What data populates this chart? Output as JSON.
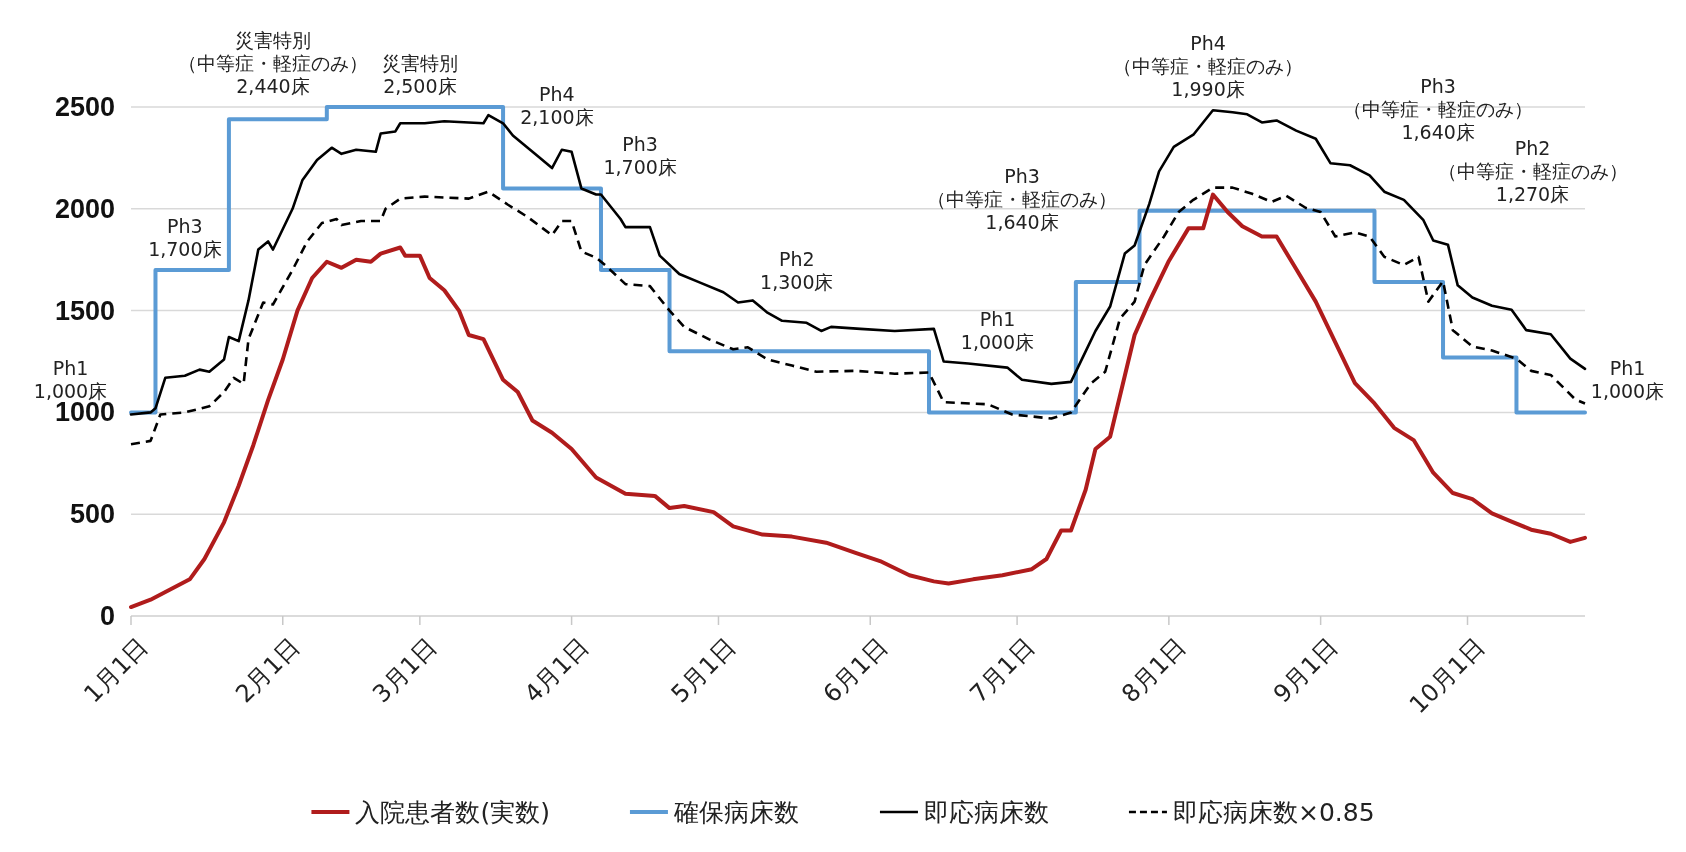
{
  "chart_data": {
    "type": "line",
    "xlim": [
      "--01-01",
      "--10-25"
    ],
    "xticks": [
      {
        "value": "--01-01",
        "label": "1月1日"
      },
      {
        "value": "--02-01",
        "label": "2月1日"
      },
      {
        "value": "--03-01",
        "label": "3月1日"
      },
      {
        "value": "--04-01",
        "label": "4月1日"
      },
      {
        "value": "--05-01",
        "label": "5月1日"
      },
      {
        "value": "--06-01",
        "label": "6月1日"
      },
      {
        "value": "--07-01",
        "label": "7月1日"
      },
      {
        "value": "--08-01",
        "label": "8月1日"
      },
      {
        "value": "--09-01",
        "label": "9月1日"
      },
      {
        "value": "--10-01",
        "label": "10月1日"
      }
    ],
    "ylim": [
      0,
      2500
    ],
    "yticks": [
      0,
      500,
      1000,
      1500,
      2000,
      2500
    ],
    "grid": "y",
    "legend": "bottom",
    "series": [
      {
        "name": "入院患者数(実数)",
        "color": "#b01c1c",
        "x": [
          "--01-01",
          "--01-05",
          "--01-09",
          "--01-13",
          "--01-16",
          "--01-20",
          "--01-23",
          "--01-26",
          "--01-29",
          "--02-01",
          "--02-04",
          "--02-07",
          "--02-10",
          "--02-13",
          "--02-16",
          "--02-19",
          "--02-21",
          "--02-25",
          "--02-26",
          "--03-01",
          "--03-03",
          "--03-06",
          "--03-09",
          "--03-11",
          "--03-14",
          "--03-18",
          "--03-21",
          "--03-24",
          "--03-28",
          "--04-01",
          "--04-06",
          "--04-12",
          "--04-18",
          "--04-21",
          "--04-24",
          "--04-30",
          "--05-04",
          "--05-10",
          "--05-16",
          "--05-23",
          "--05-29",
          "--06-03",
          "--06-09",
          "--06-14",
          "--06-17",
          "--06-22",
          "--06-28",
          "--07-04",
          "--07-07",
          "--07-10",
          "--07-12",
          "--07-15",
          "--07-17",
          "--07-20",
          "--07-23",
          "--07-25",
          "--07-28",
          "--08-01",
          "--08-05",
          "--08-08",
          "--08-10",
          "--08-13",
          "--08-16",
          "--08-20",
          "--08-23",
          "--08-27",
          "--08-31",
          "--09-04",
          "--09-08",
          "--09-12",
          "--09-16",
          "--09-20",
          "--09-24",
          "--09-28",
          "--10-02",
          "--10-06",
          "--10-10",
          "--10-14",
          "--10-18",
          "--10-22",
          "--10-25"
        ],
        "values": [
          44,
          80,
          130,
          180,
          280,
          460,
          640,
          840,
          1060,
          1260,
          1500,
          1660,
          1740,
          1710,
          1750,
          1740,
          1780,
          1810,
          1770,
          1770,
          1660,
          1600,
          1500,
          1380,
          1360,
          1160,
          1100,
          960,
          900,
          820,
          680,
          600,
          590,
          530,
          540,
          510,
          440,
          400,
          390,
          360,
          310,
          270,
          200,
          170,
          160,
          180,
          200,
          230,
          280,
          420,
          420,
          620,
          820,
          880,
          1180,
          1380,
          1544,
          1744,
          1904,
          1904,
          2070,
          1984,
          1914,
          1864,
          1864,
          1704,
          1544,
          1344,
          1144,
          1044,
          924,
          864,
          704,
          604,
          574,
          504,
          464,
          424,
          404,
          364,
          384
        ]
      },
      {
        "name": "確保病床数",
        "color": "#5b9bd5",
        "type": "step",
        "x": [
          "--01-01",
          "--01-06",
          "--01-21",
          "--02-10",
          "--03-18",
          "--04-07",
          "--04-21",
          "--06-13",
          "--07-13",
          "--07-26",
          "--09-12",
          "--09-26",
          "--10-11",
          "--10-25"
        ],
        "values": [
          1000,
          1700,
          2440,
          2500,
          2100,
          1700,
          1300,
          1000,
          1640,
          1990,
          1640,
          1270,
          1000,
          1000
        ]
      },
      {
        "name": "即応病床数",
        "color": "#000000",
        "x": [
          "--01-01",
          "--01-05",
          "--01-06",
          "--01-08",
          "--01-12",
          "--01-15",
          "--01-17",
          "--01-20",
          "--01-21",
          "--01-23",
          "--01-25",
          "--01-27",
          "--01-29",
          "--01-30",
          "--02-03",
          "--02-05",
          "--02-08",
          "--02-11",
          "--02-13",
          "--02-16",
          "--02-20",
          "--02-21",
          "--02-24",
          "--02-25",
          "--03-02",
          "--03-06",
          "--03-14",
          "--03-15",
          "--03-18",
          "--03-20",
          "--03-25",
          "--03-28",
          "--03-30",
          "--04-01",
          "--04-03",
          "--04-06",
          "--04-07",
          "--04-11",
          "--04-12",
          "--04-17",
          "--04-19",
          "--04-23",
          "--04-27",
          "--05-02",
          "--05-05",
          "--05-08",
          "--05-11",
          "--05-14",
          "--05-19",
          "--05-22",
          "--05-24",
          "--05-30",
          "--06-06",
          "--06-14",
          "--06-16",
          "--06-21",
          "--06-29",
          "--07-02",
          "--07-08",
          "--07-12",
          "--07-15",
          "--07-17",
          "--07-20",
          "--07-23",
          "--07-25",
          "--07-28",
          "--07-30",
          "--08-02",
          "--08-06",
          "--08-08",
          "--08-10",
          "--08-14",
          "--08-17",
          "--08-20",
          "--08-23",
          "--08-27",
          "--08-31",
          "--09-03",
          "--09-07",
          "--09-11",
          "--09-14",
          "--09-18",
          "--09-22",
          "--09-24",
          "--09-27",
          "--09-29",
          "--10-02",
          "--10-06",
          "--10-10",
          "--10-13",
          "--10-18",
          "--10-22",
          "--10-25"
        ],
        "values": [
          990,
          1000,
          1020,
          1170,
          1180,
          1210,
          1200,
          1260,
          1370,
          1350,
          1550,
          1800,
          1840,
          1800,
          2000,
          2140,
          2240,
          2300,
          2270,
          2290,
          2280,
          2370,
          2380,
          2420,
          2420,
          2430,
          2420,
          2460,
          2420,
          2360,
          2260,
          2200,
          2290,
          2280,
          2100,
          2070,
          2070,
          1950,
          1910,
          1910,
          1770,
          1680,
          1640,
          1590,
          1540,
          1550,
          1490,
          1450,
          1440,
          1400,
          1420,
          1410,
          1400,
          1410,
          1250,
          1240,
          1220,
          1160,
          1140,
          1150,
          1300,
          1400,
          1520,
          1780,
          1820,
          2024,
          2184,
          2304,
          2364,
          2424,
          2484,
          2474,
          2464,
          2424,
          2434,
          2384,
          2344,
          2224,
          2214,
          2164,
          2084,
          2044,
          1944,
          1844,
          1824,
          1624,
          1564,
          1524,
          1504,
          1404,
          1384,
          1264,
          1214
        ]
      },
      {
        "name": "即応病床数×0.85",
        "color": "#000000",
        "line_style": "dashed",
        "x": [
          "--01-01",
          "--01-05",
          "--01-07",
          "--01-12",
          "--01-17",
          "--01-20",
          "--01-22",
          "--01-24",
          "--01-25",
          "--01-28",
          "--01-30",
          "--02-03",
          "--02-06",
          "--02-09",
          "--02-12",
          "--02-13",
          "--02-17",
          "--02-21",
          "--02-22",
          "--02-25",
          "--03-02",
          "--03-11",
          "--03-15",
          "--03-19",
          "--03-23",
          "--03-28",
          "--03-30",
          "--04-01",
          "--04-03",
          "--04-06",
          "--04-08",
          "--04-12",
          "--04-17",
          "--04-21",
          "--04-24",
          "--04-29",
          "--05-04",
          "--05-07",
          "--05-11",
          "--05-16",
          "--05-21",
          "--05-29",
          "--06-06",
          "--06-13",
          "--06-16",
          "--06-25",
          "--06-30",
          "--07-08",
          "--07-12",
          "--07-16",
          "--07-19",
          "--07-22",
          "--07-25",
          "--07-27",
          "--07-31",
          "--08-03",
          "--08-06",
          "--08-10",
          "--08-14",
          "--08-18",
          "--08-22",
          "--08-25",
          "--08-29",
          "--09-01",
          "--09-04",
          "--09-08",
          "--09-11",
          "--09-14",
          "--09-18",
          "--09-21",
          "--09-23",
          "--09-26",
          "--09-28",
          "--10-02",
          "--10-06",
          "--10-11",
          "--10-14",
          "--10-18",
          "--10-23",
          "--10-25"
        ],
        "values": [
          844,
          860,
          990,
          1000,
          1030,
          1100,
          1170,
          1140,
          1360,
          1540,
          1530,
          1700,
          1840,
          1930,
          1950,
          1920,
          1940,
          1940,
          2000,
          2050,
          2060,
          2050,
          2084,
          2020,
          1960,
          1870,
          1940,
          1940,
          1790,
          1760,
          1720,
          1630,
          1620,
          1500,
          1420,
          1360,
          1310,
          1320,
          1260,
          1230,
          1200,
          1204,
          1190,
          1196,
          1050,
          1040,
          990,
          970,
          1000,
          1140,
          1200,
          1460,
          1544,
          1724,
          1864,
          1984,
          2044,
          2104,
          2104,
          2074,
          2034,
          2064,
          2004,
          1984,
          1864,
          1884,
          1864,
          1764,
          1724,
          1764,
          1544,
          1644,
          1404,
          1324,
          1304,
          1264,
          1204,
          1184,
          1064,
          1044
        ]
      }
    ],
    "annotations": [
      "Ph1\n1,000床",
      "Ph3\n1,700床",
      "災害特別（中等症・軽症のみ）\n2,440床",
      "災害特別\n2,500床",
      "Ph4\n2,100床",
      "Ph3\n1,700床",
      "Ph2\n1,300床",
      "Ph1\n1,000床",
      "Ph3\n（中等症・軽症のみ）\n1,640床",
      "Ph4\n（中等症・軽症のみ）\n1,990床",
      "Ph3\n（中等症・軽症のみ）\n1,640床",
      "Ph2\n（中等症・軽症のみ）\n1,270床",
      "Ph1\n1,000床"
    ]
  }
}
